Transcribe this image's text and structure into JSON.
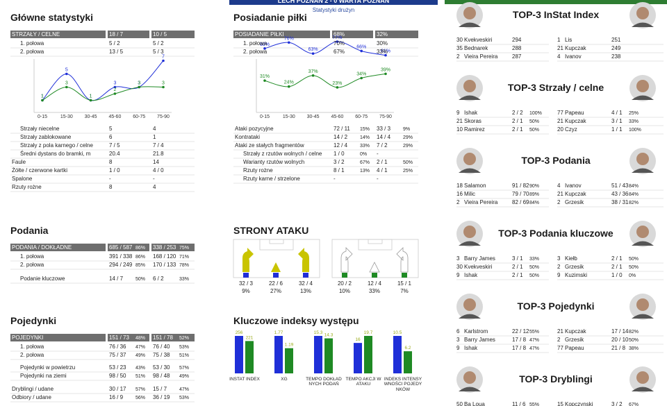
{
  "header": {
    "title": "LECH POZNAŃ 2 - 0 WARTA POZNAŃ",
    "subtitle": "Statystyki drużyn"
  },
  "main_stats": {
    "title": "Główne statystyki",
    "table": {
      "header": [
        "STRZAŁY / CELNE",
        "18 / 7",
        "10 / 5"
      ],
      "rows": [
        [
          "1. połowa",
          "5 / 2",
          "5 / 2"
        ],
        [
          "2. połowa",
          "13 / 5",
          "5 / 3"
        ],
        [
          "Strzały niecelne",
          "5",
          "4"
        ],
        [
          "Strzały zablokowane",
          "6",
          "1"
        ],
        [
          "Strzały z pola karnego / celne",
          "7 / 5",
          "7 / 4"
        ],
        [
          "Średni dystans do bramki, m",
          "20.4",
          "21.8"
        ],
        [
          "Faule",
          "8",
          "14"
        ],
        [
          "Żółte / czerwone kartki",
          "1 / 0",
          "4 / 0"
        ],
        [
          "Spalone",
          "-",
          "-"
        ],
        [
          "Rzuty rożne",
          "8",
          "4"
        ]
      ]
    },
    "chart": {
      "type": "line",
      "categories": [
        "0-15",
        "15-30",
        "30-45",
        "45-60",
        "60-75",
        "75-90"
      ],
      "series": [
        {
          "color": "#1f2fd8",
          "values": [
            1,
            5,
            1,
            3,
            3,
            7
          ]
        },
        {
          "color": "#1f8a24",
          "values": [
            1,
            3,
            1,
            2,
            3,
            3
          ]
        }
      ]
    }
  },
  "possession": {
    "title": "Posiadanie piłki",
    "table": {
      "header": [
        "POSIADANIE PIŁKI",
        "68%",
        "32%"
      ],
      "rows": [
        [
          "1. połowa",
          "70%",
          "30%"
        ],
        [
          "2. połowa",
          "67%",
          "33%"
        ],
        [
          "Ataki pozycyjne",
          "72 / 11",
          "15%",
          "33 / 3",
          "9%"
        ],
        [
          "Kontrataki",
          "14 / 2",
          "14%",
          "14 / 4",
          "29%"
        ],
        [
          "Ataki ze stałych fragmentów",
          "12 / 4",
          "33%",
          "7 / 2",
          "29%"
        ],
        [
          "Strzały z rzutów wolnych / celne",
          "1 / 0",
          "0%",
          "-",
          ""
        ],
        [
          "Warianty rzutów wolnych",
          "3 / 2",
          "67%",
          "2 / 1",
          "50%"
        ],
        [
          "Rzuty rożne",
          "8 / 1",
          "13%",
          "4 / 1",
          "25%"
        ],
        [
          "Rzuty karne / strzelone",
          "-",
          "",
          "-",
          ""
        ]
      ]
    },
    "chart": {
      "type": "line",
      "categories": [
        "0-15",
        "15-30",
        "30-45",
        "45-60",
        "60-75",
        "75-90"
      ],
      "series": [
        {
          "color": "#1f2fd8",
          "values": [
            69,
            76,
            63,
            77,
            66,
            61
          ],
          "value_labels": [
            "69%",
            "76%",
            "63%",
            "77%",
            "66%",
            "61%"
          ]
        },
        {
          "color": "#1f8a24",
          "values": [
            31,
            24,
            37,
            23,
            34,
            39
          ],
          "value_labels": [
            "31%",
            "24%",
            "37%",
            "23%",
            "34%",
            "39%"
          ]
        }
      ]
    }
  },
  "passes": {
    "title": "Podania",
    "table": {
      "header": [
        "PODANIA / DOKŁADNE",
        "685 / 587",
        "86%",
        "338 / 253",
        "75%"
      ],
      "rows": [
        [
          "1. połowa",
          "391 / 338",
          "86%",
          "168 / 120",
          "71%"
        ],
        [
          "2. połowa",
          "294 / 249",
          "85%",
          "170 / 133",
          "78%"
        ],
        [
          "Podanie kluczowe",
          "14 / 7",
          "50%",
          "6 / 2",
          "33%"
        ]
      ]
    }
  },
  "attack_sides": {
    "title": "STRONY ATAKU",
    "home": [
      [
        "32 / 3",
        "9%"
      ],
      [
        "22 / 6",
        "27%"
      ],
      [
        "32 / 4",
        "13%"
      ]
    ],
    "away": [
      [
        "20 / 2",
        "10%"
      ],
      [
        "12 / 4",
        "33%"
      ],
      [
        "15 / 1",
        "7%"
      ]
    ]
  },
  "duels": {
    "title": "Pojedynki",
    "table": {
      "header": [
        "POJEDYNKI",
        "151 / 73",
        "48%",
        "151 / 78",
        "52%"
      ],
      "rows": [
        [
          "1. połowa",
          "76 / 36",
          "47%",
          "76 / 40",
          "53%"
        ],
        [
          "2. połowa",
          "75 / 37",
          "49%",
          "75 / 38",
          "51%"
        ],
        [
          "Pojedynki w powietrzu",
          "53 / 23",
          "43%",
          "53 / 30",
          "57%"
        ],
        [
          "Pojedynki na ziemi",
          "98 / 50",
          "51%",
          "98 / 48",
          "49%"
        ],
        [
          "Dryblingi / udane",
          "30 / 17",
          "57%",
          "15 / 7",
          "47%"
        ],
        [
          "Odbiory / udane",
          "16 / 9",
          "56%",
          "36 / 19",
          "53%"
        ]
      ]
    }
  },
  "key_indices": {
    "title": "Kluczowe indeksy występu",
    "chart": {
      "type": "bar",
      "categories": [
        "INSTAT INDEX",
        "XG",
        "TEMPO DOKŁADNYCH PODAŃ",
        "TEMPO AKCJI W ATAKU",
        "INDEKS INTENSYWNOŚCI POJEDYNKÓW"
      ],
      "series": [
        {
          "color": "#1f2fd8",
          "values": [
            256,
            1.77,
            15.3,
            16,
            10.5
          ]
        },
        {
          "color": "#1f8a24",
          "values": [
            221,
            1.19,
            14.3,
            19.7,
            6.2
          ]
        }
      ]
    }
  },
  "top3": [
    {
      "title": "TOP-3 InStat Index",
      "rows": [
        {
          "home": [
            "30",
            "Kvekveskiri",
            "294"
          ],
          "away": [
            "1",
            "Lis",
            "251"
          ]
        },
        {
          "home": [
            "35",
            "Bednarek",
            "288"
          ],
          "away": [
            "21",
            "Kupczak",
            "249"
          ]
        },
        {
          "home": [
            "2",
            "Vieira Pereira",
            "287"
          ],
          "away": [
            "4",
            "Ivanov",
            "238"
          ]
        }
      ]
    },
    {
      "title": "TOP-3 Strzały / celne",
      "rows": [
        {
          "home": [
            "9",
            "Ishak",
            "2 / 2",
            "100%"
          ],
          "away": [
            "77",
            "Papeau",
            "4 / 1",
            "25%"
          ]
        },
        {
          "home": [
            "21",
            "Skoras",
            "2 / 1",
            "50%"
          ],
          "away": [
            "21",
            "Kupczak",
            "3 / 1",
            "33%"
          ]
        },
        {
          "home": [
            "10",
            "Ramirez",
            "2 / 1",
            "50%"
          ],
          "away": [
            "20",
            "Czyz",
            "1 / 1",
            "100%"
          ]
        }
      ]
    },
    {
      "title": "TOP-3 Podania",
      "rows": [
        {
          "home": [
            "18",
            "Salamon",
            "91 / 82",
            "90%"
          ],
          "away": [
            "4",
            "Ivanov",
            "51 / 43",
            "84%"
          ]
        },
        {
          "home": [
            "16",
            "Milic",
            "79 / 70",
            "89%"
          ],
          "away": [
            "21",
            "Kupczak",
            "43 / 36",
            "84%"
          ]
        },
        {
          "home": [
            "2",
            "Vieira Pereira",
            "82 / 69",
            "84%"
          ],
          "away": [
            "2",
            "Grzesik",
            "38 / 31",
            "82%"
          ]
        }
      ]
    },
    {
      "title": "TOP-3 Podania kluczowe",
      "rows": [
        {
          "home": [
            "3",
            "Barry James",
            "3 / 1",
            "33%"
          ],
          "away": [
            "3",
            "Kiełb",
            "2 / 1",
            "50%"
          ]
        },
        {
          "home": [
            "30",
            "Kvekveskiri",
            "2 / 1",
            "50%"
          ],
          "away": [
            "2",
            "Grzesik",
            "2 / 1",
            "50%"
          ]
        },
        {
          "home": [
            "9",
            "Ishak",
            "2 / 1",
            "50%"
          ],
          "away": [
            "9",
            "Kuzimski",
            "1 / 0",
            "0%"
          ]
        }
      ]
    },
    {
      "title": "TOP-3 Pojedynki",
      "rows": [
        {
          "home": [
            "6",
            "Karlstrom",
            "22 / 12",
            "55%"
          ],
          "away": [
            "21",
            "Kupczak",
            "17 / 14",
            "82%"
          ]
        },
        {
          "home": [
            "3",
            "Barry James",
            "17 / 8",
            "47%"
          ],
          "away": [
            "2",
            "Grzesik",
            "20 / 10",
            "50%"
          ]
        },
        {
          "home": [
            "9",
            "Ishak",
            "17 / 8",
            "47%"
          ],
          "away": [
            "77",
            "Papeau",
            "21 / 8",
            "38%"
          ]
        }
      ]
    },
    {
      "title": "TOP-3 Dryblingi",
      "rows": [
        {
          "home": [
            "50",
            "Ba Loua",
            "11 / 6",
            "55%"
          ],
          "away": [
            "15",
            "Kopczynski",
            "3 / 2",
            "67%"
          ]
        }
      ]
    }
  ]
}
